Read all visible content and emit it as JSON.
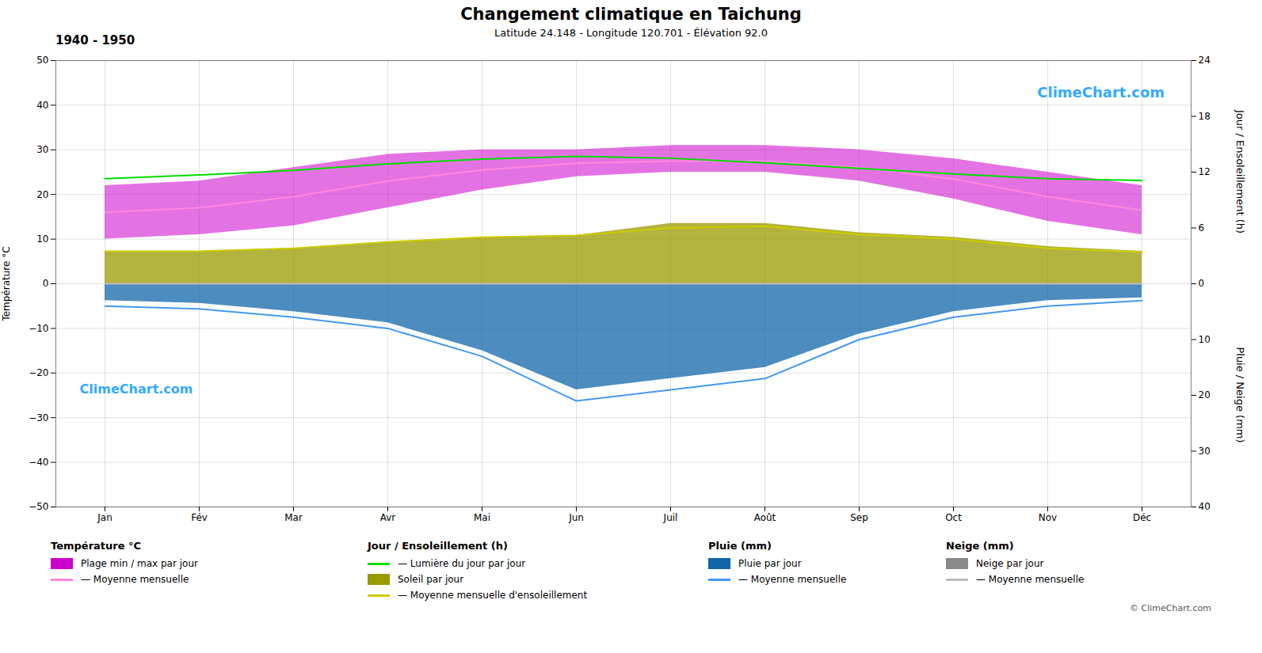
{
  "chart_data": {
    "type": "line",
    "title": "Changement climatique en Taichung",
    "subtitle": "Latitude 24.148 - Longitude 120.701 - Élévation 92.0",
    "categories": [
      "Jan",
      "Fév",
      "Mar",
      "Avr",
      "Mai",
      "Jun",
      "Juil",
      "Août",
      "Sep",
      "Oct",
      "Nov",
      "Déc"
    ],
    "ylabel": "Température °C",
    "ylim": [
      -50,
      50
    ],
    "yticks": [
      -50,
      -40,
      -30,
      -20,
      -10,
      0,
      10,
      20,
      30,
      40,
      50
    ],
    "y2label": "Jour / Ensoleillement (h)",
    "y2lim": [
      -24,
      24
    ],
    "y2ticks": [
      0,
      6,
      12,
      18,
      24
    ],
    "y3label": "Pluie / Neige (mm)",
    "y3lim": [
      40,
      -40
    ],
    "y3ticks": [
      10,
      20,
      30,
      40
    ],
    "grid": true,
    "series": [
      {
        "name": "Plage min / max par jour",
        "group": "Température °C",
        "type": "area",
        "color": "#cc00cc",
        "low": [
          10,
          11,
          13,
          17,
          21,
          24,
          25,
          25,
          23,
          19,
          14,
          11
        ],
        "high": [
          22,
          23,
          26,
          29,
          30,
          30,
          31,
          31,
          30,
          28,
          25,
          22
        ]
      },
      {
        "name": "— Moyenne mensuelle",
        "group": "Température °C",
        "type": "line",
        "color": "#ff88dd",
        "values": [
          16.0,
          17.0,
          19.5,
          23.0,
          25.5,
          27.0,
          27.5,
          27.5,
          26.0,
          23.5,
          19.5,
          16.5
        ]
      },
      {
        "name": "— Lumière du jour par jour",
        "group": "Jour / Ensoleillement (h)",
        "type": "line",
        "color": "#00dd00",
        "axis": "y2",
        "values": [
          11.3,
          11.7,
          12.2,
          12.9,
          13.4,
          13.7,
          13.5,
          13.0,
          12.4,
          11.8,
          11.3,
          11.1
        ]
      },
      {
        "name": "Soleil par jour",
        "group": "Jour / Ensoleillement (h)",
        "type": "area",
        "color": "#999900",
        "axis": "y2",
        "values": [
          3.5,
          3.5,
          3.8,
          4.5,
          5.0,
          5.2,
          6.5,
          6.5,
          5.5,
          5.0,
          4.0,
          3.5
        ]
      },
      {
        "name": "— Moyenne mensuelle d'ensoleillement",
        "group": "Jour / Ensoleillement (h)",
        "type": "line",
        "color": "#cccc00",
        "axis": "y2",
        "values": [
          3.5,
          3.5,
          3.8,
          4.5,
          5.0,
          5.2,
          6.0,
          6.2,
          5.3,
          4.8,
          3.8,
          3.4
        ]
      },
      {
        "name": "Pluie par jour",
        "group": "Pluie (mm)",
        "type": "area",
        "color": "#1166aa",
        "axis": "y3",
        "values": [
          3.0,
          3.5,
          5.0,
          7.0,
          12.0,
          19.0,
          17.0,
          15.0,
          9.0,
          5.0,
          3.0,
          2.5
        ]
      },
      {
        "name": "— Moyenne mensuelle",
        "group": "Pluie (mm)",
        "type": "line",
        "color": "#4499ee",
        "axis": "y3",
        "values": [
          4.0,
          4.5,
          6.0,
          8.0,
          13.0,
          21.0,
          19.0,
          17.0,
          10.0,
          6.0,
          4.0,
          3.0
        ]
      },
      {
        "name": "Neige par jour",
        "group": "Neige (mm)",
        "type": "area",
        "color": "#888888",
        "axis": "y3",
        "values": [
          0,
          0,
          0,
          0,
          0,
          0,
          0,
          0,
          0,
          0,
          0,
          0
        ]
      },
      {
        "name": "— Moyenne mensuelle",
        "group": "Neige (mm)",
        "type": "line",
        "color": "#bbbbbb",
        "axis": "y3",
        "values": [
          0,
          0,
          0,
          0,
          0,
          0,
          0,
          0,
          0,
          0,
          0,
          0
        ]
      }
    ],
    "annotations": [
      {
        "text": "1940 - 1950"
      },
      {
        "text": " ClimeChart.com",
        "color": "#33aaff"
      },
      {
        "text": " ClimeChart.com",
        "color": "#33aaff"
      },
      {
        "text": "© ClimeChart.com"
      }
    ]
  }
}
